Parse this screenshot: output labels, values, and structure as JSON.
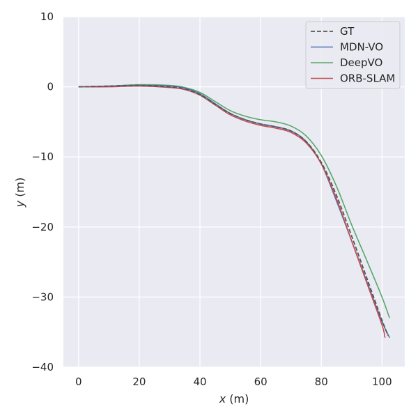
{
  "chart_data": {
    "type": "line",
    "xlabel": {
      "var": "x",
      "unit": " (m)"
    },
    "ylabel": {
      "var": "y",
      "unit": " (m)"
    },
    "xlim": [
      -5,
      107.5
    ],
    "ylim": [
      -40,
      10
    ],
    "xticks": [
      0,
      20,
      40,
      60,
      80,
      100
    ],
    "yticks": [
      10,
      0,
      -10,
      -20,
      -30,
      -40
    ],
    "xtick_labels": [
      "0",
      "20",
      "40",
      "60",
      "80",
      "100"
    ],
    "ytick_labels": [
      "10",
      "0",
      "−10",
      "−20",
      "−30",
      "−40"
    ],
    "grid": true,
    "legend": {
      "position": "top-right"
    },
    "series": [
      {
        "name": "GT",
        "color": "#555555",
        "dash": true,
        "x": [
          0,
          10,
          20,
          30,
          35,
          40,
          45,
          50,
          55,
          60,
          65,
          70,
          75,
          80,
          85,
          90,
          95,
          100,
          102
        ],
        "y": [
          0,
          0.1,
          0.2,
          0,
          -0.3,
          -1.1,
          -2.5,
          -3.8,
          -4.7,
          -5.3,
          -5.7,
          -6.3,
          -7.8,
          -10.8,
          -15.5,
          -21.3,
          -27.3,
          -33.3,
          -35.5
        ]
      },
      {
        "name": "MDN-VO",
        "color": "#4c72b0",
        "dash": false,
        "x": [
          0,
          10,
          20,
          30,
          35,
          40,
          45,
          50,
          55,
          60,
          65,
          70,
          75,
          80,
          85,
          90,
          95,
          100,
          102.5
        ],
        "y": [
          0,
          0.1,
          0.2,
          0.1,
          -0.2,
          -1.0,
          -2.4,
          -3.8,
          -4.7,
          -5.3,
          -5.7,
          -6.3,
          -7.8,
          -11.0,
          -16.3,
          -22.0,
          -27.8,
          -33.5,
          -35.8
        ]
      },
      {
        "name": "DeepVO",
        "color": "#55a868",
        "dash": false,
        "x": [
          0,
          10,
          20,
          30,
          35,
          40,
          45,
          50,
          55,
          60,
          65,
          70,
          75,
          80,
          85,
          90,
          95,
          100,
          102.5
        ],
        "y": [
          0,
          0.1,
          0.3,
          0.2,
          -0.1,
          -0.8,
          -2.1,
          -3.4,
          -4.2,
          -4.7,
          -5.0,
          -5.6,
          -7.0,
          -9.8,
          -14.2,
          -19.7,
          -24.8,
          -30.0,
          -33.0
        ]
      },
      {
        "name": "ORB-SLAM",
        "color": "#c44e52",
        "dash": false,
        "x": [
          0,
          10,
          20,
          30,
          35,
          40,
          45,
          50,
          55,
          60,
          65,
          70,
          75,
          80,
          85,
          90,
          95,
          100,
          101
        ],
        "y": [
          0,
          0,
          0.1,
          -0.1,
          -0.4,
          -1.2,
          -2.6,
          -4.0,
          -4.9,
          -5.5,
          -5.9,
          -6.5,
          -8.0,
          -11.0,
          -16.0,
          -22.0,
          -28.0,
          -34.0,
          -35.8
        ]
      }
    ]
  }
}
